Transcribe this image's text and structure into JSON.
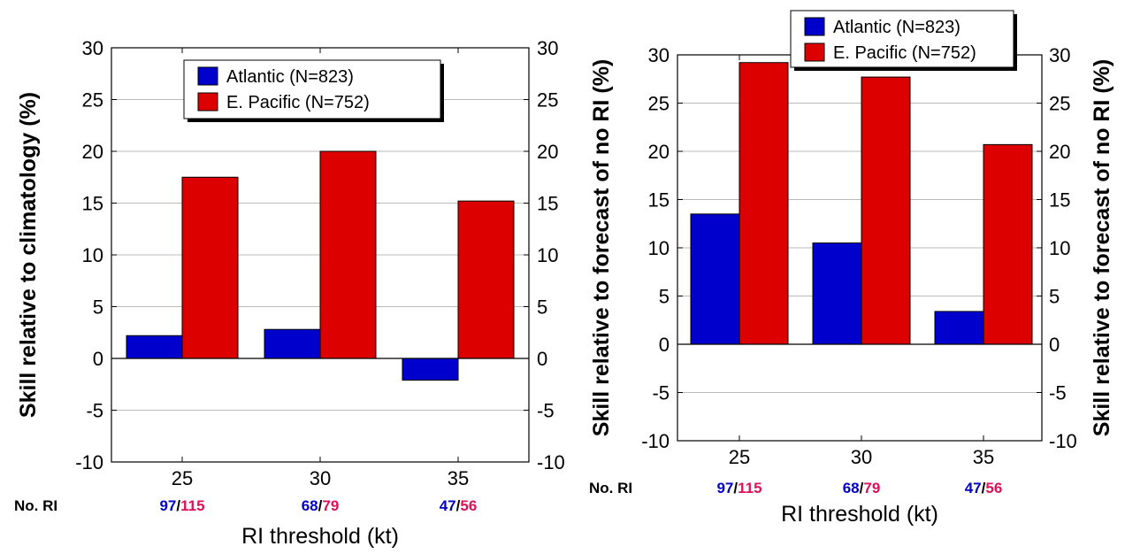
{
  "colors": {
    "atlantic": "#0000cc",
    "pacific": "#dd0000",
    "pacific_count": "#dd1155",
    "grid": "#bbbbbb"
  },
  "chart_data": [
    {
      "type": "bar",
      "categories": [
        "25",
        "30",
        "35"
      ],
      "series": [
        {
          "name": "Atlantic (N=823)",
          "values": [
            2.2,
            2.8,
            -2.1
          ]
        },
        {
          "name": "E. Pacific (N=752)",
          "values": [
            17.5,
            20.0,
            15.2
          ]
        }
      ],
      "xlabel": "RI threshold (kt)",
      "ylabel": "Skill relative to climatology (%)",
      "ylim": [
        -10,
        30
      ],
      "yticks": [
        "30",
        "25",
        "20",
        "15",
        "10",
        "5",
        "0",
        "-5",
        "-10"
      ],
      "grid": true,
      "legend": "top-center",
      "count_row_label": "No. RI",
      "counts": [
        {
          "atlantic": "97",
          "sep": "/",
          "pacific": "115"
        },
        {
          "atlantic": "68",
          "sep": "/",
          "pacific": "79"
        },
        {
          "atlantic": "47",
          "sep": "/",
          "pacific": "56"
        }
      ]
    },
    {
      "type": "bar",
      "categories": [
        "25",
        "30",
        "35"
      ],
      "series": [
        {
          "name": "Atlantic (N=823)",
          "values": [
            13.5,
            10.5,
            3.4
          ]
        },
        {
          "name": "E. Pacific (N=752)",
          "values": [
            29.2,
            27.7,
            20.7
          ]
        }
      ],
      "xlabel": "RI threshold (kt)",
      "ylabel": "Skill relative to forecast of no RI (%)",
      "ylim": [
        -10,
        30
      ],
      "yticks": [
        "30",
        "25",
        "20",
        "15",
        "10",
        "5",
        "0",
        "-5",
        "-10"
      ],
      "grid": true,
      "legend": "top-center",
      "count_row_label": "No. RI",
      "counts": [
        {
          "atlantic": "97",
          "sep": "/",
          "pacific": "115"
        },
        {
          "atlantic": "68",
          "sep": "/",
          "pacific": "79"
        },
        {
          "atlantic": "47",
          "sep": "/",
          "pacific": "56"
        }
      ]
    }
  ]
}
